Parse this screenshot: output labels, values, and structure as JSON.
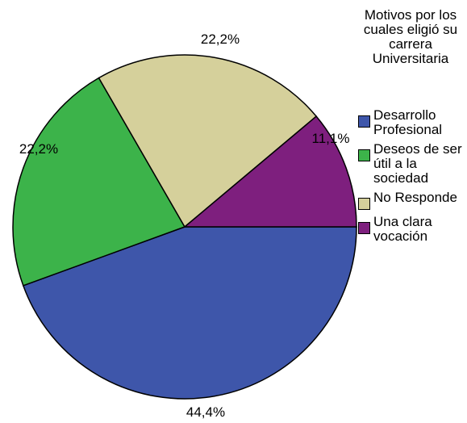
{
  "chart_data": {
    "type": "pie",
    "legend_title": "Motivos por los cuales eligió su carrera Universitaria",
    "legend_position": "right",
    "slices": [
      {
        "name": "Desarrollo Profesional",
        "value": 44.4,
        "label": "44,4%",
        "color": "#3e56aa"
      },
      {
        "name": "Deseos de ser útil a la sociedad",
        "value": 22.2,
        "label": "22,2%",
        "color": "#3cb34a"
      },
      {
        "name": "No Responde",
        "value": 22.2,
        "label": "22,2%",
        "color": "#d5d09b"
      },
      {
        "name": "Una clara vocación",
        "value": 11.1,
        "label": "11,1%",
        "color": "#7e1f7e"
      }
    ]
  },
  "legend": {
    "title": "Motivos por los cuales eligió su carrera Universitaria",
    "items": [
      {
        "label": "Desarrollo Profesional",
        "color": "#3e56aa"
      },
      {
        "label": "Deseos de ser útil a la sociedad",
        "color": "#3cb34a"
      },
      {
        "label": "No Responde",
        "color": "#d5d09b"
      },
      {
        "label": "Una clara vocación",
        "color": "#7e1f7e"
      }
    ]
  }
}
